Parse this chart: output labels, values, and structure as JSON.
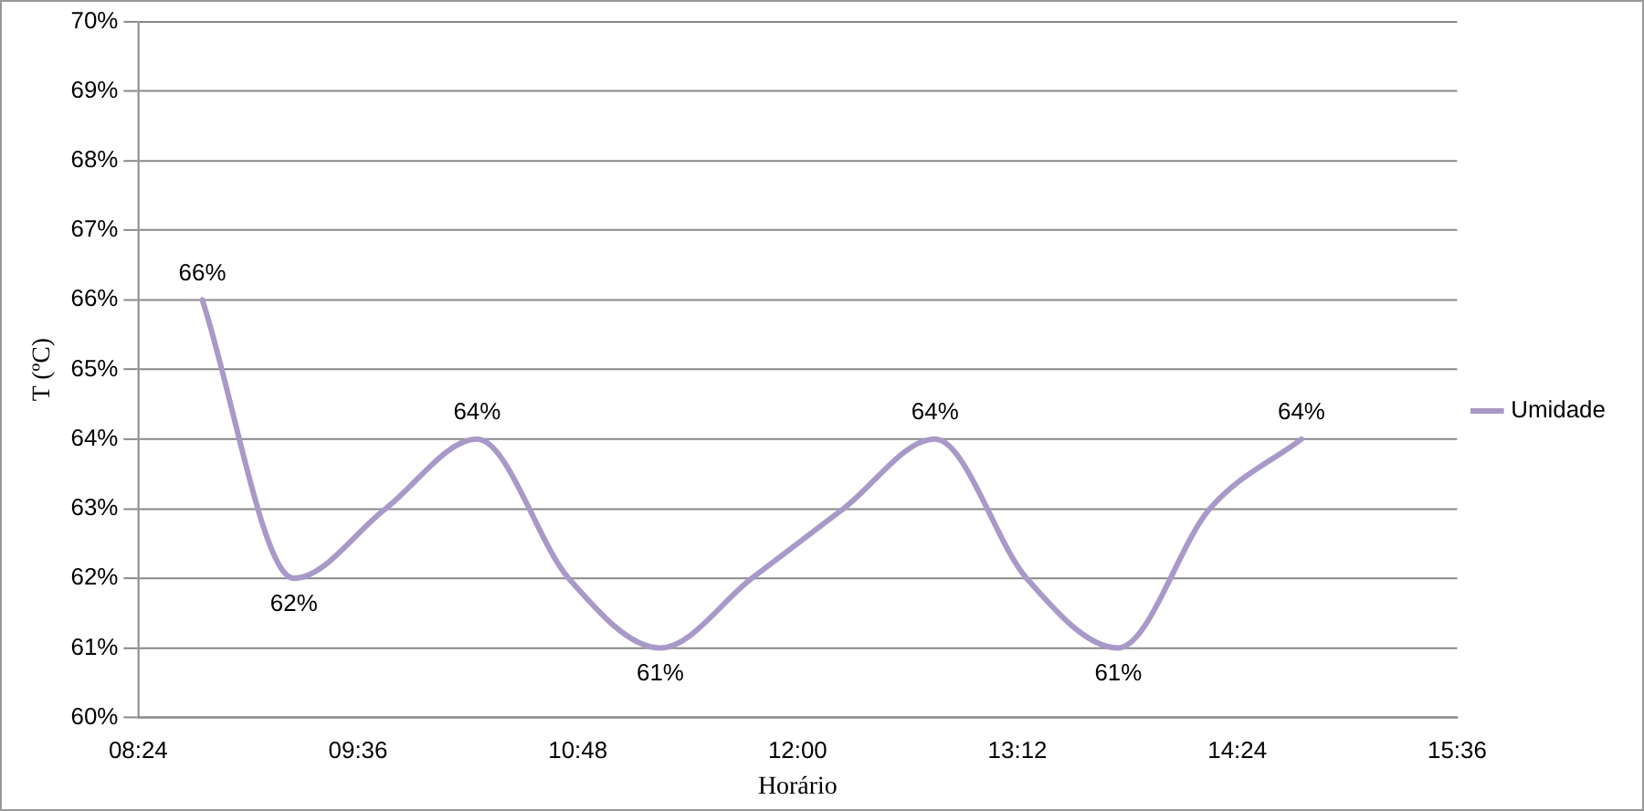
{
  "chart_data": {
    "type": "line",
    "xlabel": "Horário",
    "ylabel": "T (ºC)",
    "x": [
      8.75,
      9.25,
      9.75,
      10.25,
      10.75,
      11.25,
      11.75,
      12.25,
      12.75,
      13.25,
      13.75,
      14.25,
      14.75
    ],
    "series": [
      {
        "name": "Umidade",
        "color": "#a899c8",
        "values": [
          66,
          62,
          63,
          64,
          62,
          61,
          62,
          63,
          64,
          62,
          61,
          63,
          64
        ],
        "value_labels": [
          "66%",
          "62%",
          null,
          "64%",
          null,
          "61%",
          null,
          null,
          "64%",
          null,
          "61%",
          null,
          "64%"
        ]
      }
    ],
    "xlim": [
      8.4,
      15.6
    ],
    "xticks": [
      {
        "value": 8.4,
        "label": "08:24"
      },
      {
        "value": 9.6,
        "label": "09:36"
      },
      {
        "value": 10.8,
        "label": "10:48"
      },
      {
        "value": 12,
        "label": "12:00"
      },
      {
        "value": 13.2,
        "label": "13:12"
      },
      {
        "value": 14.4,
        "label": "14:24"
      },
      {
        "value": 15.6,
        "label": "15:36"
      }
    ],
    "ylim": [
      60,
      70
    ],
    "yticks": [
      {
        "value": 60,
        "label": "60%"
      },
      {
        "value": 61,
        "label": "61%"
      },
      {
        "value": 62,
        "label": "62%"
      },
      {
        "value": 63,
        "label": "63%"
      },
      {
        "value": 64,
        "label": "64%"
      },
      {
        "value": 65,
        "label": "65%"
      },
      {
        "value": 66,
        "label": "66%"
      },
      {
        "value": 67,
        "label": "67%"
      },
      {
        "value": 68,
        "label": "68%"
      },
      {
        "value": 69,
        "label": "69%"
      },
      {
        "value": 70,
        "label": "70%"
      }
    ],
    "grid": "y",
    "legend": "right",
    "marker": "none",
    "line_style": "solid"
  }
}
